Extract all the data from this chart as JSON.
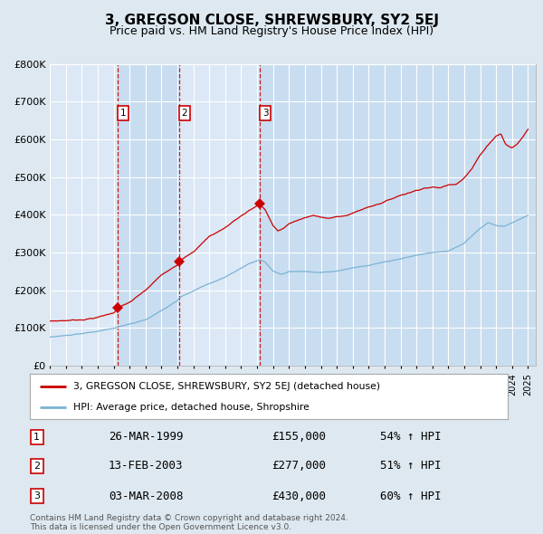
{
  "title": "3, GREGSON CLOSE, SHREWSBURY, SY2 5EJ",
  "subtitle": "Price paid vs. HM Land Registry's House Price Index (HPI)",
  "background_color": "#dde8f0",
  "plot_bg_color": "#dce8f5",
  "band_color": "#c8ddf0",
  "grid_color": "#e8e8e8",
  "hpi_color": "#7ab3d4",
  "price_color": "#cc0000",
  "ylim": [
    0,
    800000
  ],
  "yticks": [
    0,
    100000,
    200000,
    300000,
    400000,
    500000,
    600000,
    700000,
    800000
  ],
  "ytick_labels": [
    "£0",
    "£100K",
    "£200K",
    "£300K",
    "£400K",
    "£500K",
    "£600K",
    "£700K",
    "£800K"
  ],
  "xlim_start": 1995.0,
  "xlim_end": 2025.5,
  "sale_years": [
    1999.23,
    2003.11,
    2008.17
  ],
  "sale_prices": [
    155000,
    277000,
    430000
  ],
  "sale_labels": [
    "1",
    "2",
    "3"
  ],
  "legend_line1": "3, GREGSON CLOSE, SHREWSBURY, SY2 5EJ (detached house)",
  "legend_line2": "HPI: Average price, detached house, Shropshire",
  "table_rows": [
    {
      "label": "1",
      "date": "26-MAR-1999",
      "price": "£155,000",
      "hpi": "54% ↑ HPI"
    },
    {
      "label": "2",
      "date": "13-FEB-2003",
      "price": "£277,000",
      "hpi": "51% ↑ HPI"
    },
    {
      "label": "3",
      "date": "03-MAR-2008",
      "price": "£430,000",
      "hpi": "60% ↑ HPI"
    }
  ],
  "footnote": "Contains HM Land Registry data © Crown copyright and database right 2024.\nThis data is licensed under the Open Government Licence v3.0."
}
